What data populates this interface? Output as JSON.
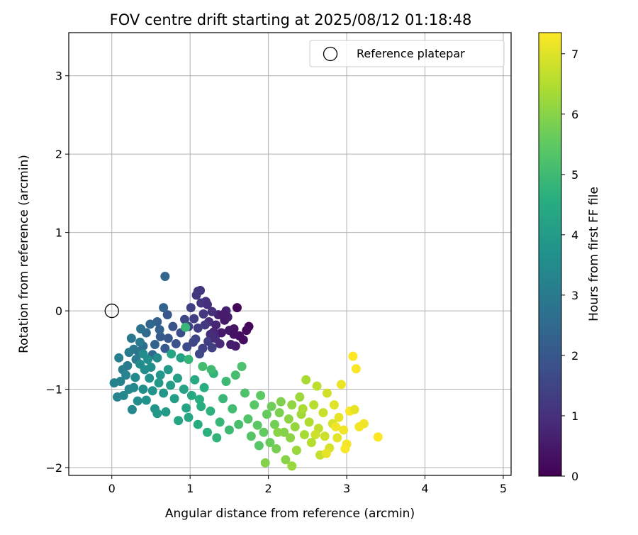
{
  "chart_data": {
    "type": "scatter",
    "title": "FOV centre drift starting at 2025/08/12 01:18:48",
    "xlabel": "Angular distance from reference (arcmin)",
    "ylabel": "Rotation from reference (arcmin)",
    "xlim": [
      -0.55,
      5.1
    ],
    "ylim": [
      -2.1,
      3.55
    ],
    "xticks": [
      "0",
      "1",
      "2",
      "3",
      "4",
      "5"
    ],
    "yticks": [
      "−2",
      "−1",
      "0",
      "1",
      "2",
      "3"
    ],
    "grid": true,
    "legend": {
      "position": "top-right",
      "entries": [
        {
          "label": "Reference platepar",
          "marker": "open-circle"
        }
      ]
    },
    "reference_point": {
      "x": 0.0,
      "y": 0.0
    },
    "colorbar": {
      "label": "Hours from first FF file",
      "colormap": "viridis",
      "range": [
        0,
        7.35
      ],
      "ticks": [
        "0",
        "1",
        "2",
        "3",
        "4",
        "5",
        "6",
        "7"
      ]
    },
    "series": [
      {
        "color_by": "hours",
        "points": [
          {
            "x": 1.6,
            "y": 0.04,
            "h": 0.1
          },
          {
            "x": 1.75,
            "y": -0.2,
            "h": 0.15
          },
          {
            "x": 1.72,
            "y": -0.25,
            "h": 0.2
          },
          {
            "x": 1.63,
            "y": -0.32,
            "h": 0.3
          },
          {
            "x": 1.68,
            "y": -0.37,
            "h": 0.25
          },
          {
            "x": 1.56,
            "y": -0.23,
            "h": 0.4
          },
          {
            "x": 1.5,
            "y": -0.25,
            "h": 0.45
          },
          {
            "x": 1.44,
            "y": -0.12,
            "h": 0.5
          },
          {
            "x": 1.4,
            "y": -0.28,
            "h": 0.55
          },
          {
            "x": 1.48,
            "y": -0.08,
            "h": 0.6
          },
          {
            "x": 1.46,
            "y": 0.0,
            "h": 0.65
          },
          {
            "x": 1.58,
            "y": -0.45,
            "h": 0.55
          },
          {
            "x": 1.52,
            "y": -0.43,
            "h": 0.6
          },
          {
            "x": 1.36,
            "y": -0.05,
            "h": 0.7
          },
          {
            "x": 1.33,
            "y": -0.18,
            "h": 0.75
          },
          {
            "x": 1.3,
            "y": -0.27,
            "h": 0.8
          },
          {
            "x": 1.38,
            "y": -0.42,
            "h": 0.85
          },
          {
            "x": 1.26,
            "y": -0.3,
            "h": 0.9
          },
          {
            "x": 1.24,
            "y": -0.14,
            "h": 0.95
          },
          {
            "x": 1.28,
            "y": -0.01,
            "h": 1.0
          },
          {
            "x": 1.2,
            "y": 0.12,
            "h": 1.05
          },
          {
            "x": 1.14,
            "y": 0.1,
            "h": 1.1
          },
          {
            "x": 1.1,
            "y": 0.25,
            "h": 1.1
          },
          {
            "x": 1.13,
            "y": 0.26,
            "h": 1.15
          },
          {
            "x": 1.08,
            "y": 0.2,
            "h": 1.2
          },
          {
            "x": 1.17,
            "y": -0.04,
            "h": 1.2
          },
          {
            "x": 1.19,
            "y": -0.18,
            "h": 1.25
          },
          {
            "x": 1.1,
            "y": -0.22,
            "h": 1.3
          },
          {
            "x": 1.05,
            "y": -0.1,
            "h": 1.35
          },
          {
            "x": 1.01,
            "y": 0.04,
            "h": 1.4
          },
          {
            "x": 1.23,
            "y": -0.39,
            "h": 1.35
          },
          {
            "x": 1.16,
            "y": -0.48,
            "h": 1.45
          },
          {
            "x": 1.07,
            "y": -0.36,
            "h": 1.5
          },
          {
            "x": 0.98,
            "y": -0.2,
            "h": 1.55
          },
          {
            "x": 0.93,
            "y": -0.11,
            "h": 1.6
          },
          {
            "x": 1.28,
            "y": -0.47,
            "h": 1.4
          },
          {
            "x": 1.12,
            "y": -0.55,
            "h": 1.6
          },
          {
            "x": 0.96,
            "y": -0.46,
            "h": 1.7
          },
          {
            "x": 0.88,
            "y": -0.28,
            "h": 1.75
          },
          {
            "x": 0.82,
            "y": -0.42,
            "h": 1.85
          },
          {
            "x": 0.78,
            "y": -0.2,
            "h": 1.9
          },
          {
            "x": 0.71,
            "y": -0.05,
            "h": 2.0
          },
          {
            "x": 0.72,
            "y": -0.35,
            "h": 2.0
          },
          {
            "x": 0.68,
            "y": -0.48,
            "h": 2.05
          },
          {
            "x": 0.62,
            "y": -0.33,
            "h": 2.1
          },
          {
            "x": 0.58,
            "y": -0.14,
            "h": 2.2
          },
          {
            "x": 0.66,
            "y": 0.04,
            "h": 2.3
          },
          {
            "x": 0.61,
            "y": -0.24,
            "h": 2.3
          },
          {
            "x": 0.55,
            "y": -0.43,
            "h": 2.35
          },
          {
            "x": 0.49,
            "y": -0.17,
            "h": 2.45
          },
          {
            "x": 0.52,
            "y": -0.56,
            "h": 2.5
          },
          {
            "x": 0.44,
            "y": -0.28,
            "h": 2.55
          },
          {
            "x": 0.4,
            "y": -0.45,
            "h": 2.6
          },
          {
            "x": 0.68,
            "y": 0.44,
            "h": 2.4
          },
          {
            "x": 0.37,
            "y": -0.23,
            "h": 2.7
          },
          {
            "x": 0.34,
            "y": -0.52,
            "h": 2.8
          },
          {
            "x": 0.28,
            "y": -0.49,
            "h": 2.85
          },
          {
            "x": 0.25,
            "y": -0.35,
            "h": 2.9
          },
          {
            "x": 0.31,
            "y": -0.62,
            "h": 2.95
          },
          {
            "x": 0.22,
            "y": -0.53,
            "h": 3.0
          },
          {
            "x": 0.2,
            "y": -0.7,
            "h": 3.05
          },
          {
            "x": 0.14,
            "y": -0.75,
            "h": 3.1
          },
          {
            "x": 0.09,
            "y": -0.6,
            "h": 3.15
          },
          {
            "x": 0.11,
            "y": -0.9,
            "h": 3.2
          },
          {
            "x": 0.03,
            "y": -0.92,
            "h": 3.25
          },
          {
            "x": 0.07,
            "y": -1.1,
            "h": 3.3
          },
          {
            "x": 0.15,
            "y": -1.08,
            "h": 3.35
          },
          {
            "x": 0.26,
            "y": -1.26,
            "h": 3.4
          },
          {
            "x": 0.22,
            "y": -1.0,
            "h": 3.4
          },
          {
            "x": 0.3,
            "y": -0.85,
            "h": 3.45
          },
          {
            "x": 0.36,
            "y": -0.68,
            "h": 3.5
          },
          {
            "x": 0.42,
            "y": -0.75,
            "h": 3.55
          },
          {
            "x": 0.33,
            "y": -1.15,
            "h": 3.55
          },
          {
            "x": 0.4,
            "y": -1.0,
            "h": 3.6
          },
          {
            "x": 0.46,
            "y": -0.62,
            "h": 3.65
          },
          {
            "x": 0.48,
            "y": -0.86,
            "h": 3.7
          },
          {
            "x": 0.52,
            "y": -1.02,
            "h": 3.75
          },
          {
            "x": 0.55,
            "y": -1.25,
            "h": 3.8
          },
          {
            "x": 0.58,
            "y": -1.31,
            "h": 3.85
          },
          {
            "x": 0.62,
            "y": -0.82,
            "h": 3.85
          },
          {
            "x": 0.66,
            "y": -1.05,
            "h": 3.9
          },
          {
            "x": 0.69,
            "y": -1.29,
            "h": 3.95
          },
          {
            "x": 0.72,
            "y": -0.75,
            "h": 4.0
          },
          {
            "x": 0.75,
            "y": -0.95,
            "h": 4.05
          },
          {
            "x": 0.8,
            "y": -1.12,
            "h": 4.1
          },
          {
            "x": 0.84,
            "y": -0.86,
            "h": 4.15
          },
          {
            "x": 0.88,
            "y": -0.6,
            "h": 4.2
          },
          {
            "x": 0.92,
            "y": -1.0,
            "h": 4.25
          },
          {
            "x": 0.95,
            "y": -1.24,
            "h": 4.3
          },
          {
            "x": 0.98,
            "y": -1.36,
            "h": 4.35
          },
          {
            "x": 1.02,
            "y": -1.08,
            "h": 4.4
          },
          {
            "x": 1.06,
            "y": -0.88,
            "h": 4.45
          },
          {
            "x": 1.1,
            "y": -1.45,
            "h": 4.5
          },
          {
            "x": 1.14,
            "y": -1.22,
            "h": 4.55
          },
          {
            "x": 1.18,
            "y": -0.98,
            "h": 4.6
          },
          {
            "x": 1.22,
            "y": -1.55,
            "h": 4.65
          },
          {
            "x": 1.26,
            "y": -1.28,
            "h": 4.7
          },
          {
            "x": 1.3,
            "y": -0.8,
            "h": 4.75
          },
          {
            "x": 1.34,
            "y": -1.62,
            "h": 4.8
          },
          {
            "x": 1.38,
            "y": -1.42,
            "h": 4.85
          },
          {
            "x": 1.42,
            "y": -1.12,
            "h": 4.9
          },
          {
            "x": 1.46,
            "y": -0.9,
            "h": 4.95
          },
          {
            "x": 1.5,
            "y": -1.52,
            "h": 5.0
          },
          {
            "x": 1.54,
            "y": -1.25,
            "h": 5.05
          },
          {
            "x": 1.58,
            "y": -0.82,
            "h": 5.1
          },
          {
            "x": 1.62,
            "y": -1.45,
            "h": 5.15
          },
          {
            "x": 1.66,
            "y": -0.71,
            "h": 5.2
          },
          {
            "x": 1.7,
            "y": -1.05,
            "h": 5.25
          },
          {
            "x": 1.74,
            "y": -1.38,
            "h": 5.3
          },
          {
            "x": 1.78,
            "y": -1.6,
            "h": 5.35
          },
          {
            "x": 1.82,
            "y": -1.2,
            "h": 5.4
          },
          {
            "x": 1.86,
            "y": -1.46,
            "h": 5.45
          },
          {
            "x": 1.9,
            "y": -1.08,
            "h": 5.5
          },
          {
            "x": 1.94,
            "y": -1.55,
            "h": 5.55
          },
          {
            "x": 1.98,
            "y": -1.32,
            "h": 5.6
          },
          {
            "x": 2.02,
            "y": -1.68,
            "h": 5.65
          },
          {
            "x": 2.04,
            "y": -1.22,
            "h": 5.7
          },
          {
            "x": 2.08,
            "y": -1.45,
            "h": 5.75
          },
          {
            "x": 2.1,
            "y": -1.76,
            "h": 5.8
          },
          {
            "x": 2.14,
            "y": -1.3,
            "h": 5.85
          },
          {
            "x": 2.16,
            "y": -1.16,
            "h": 5.9
          },
          {
            "x": 2.2,
            "y": -1.55,
            "h": 5.95
          },
          {
            "x": 2.22,
            "y": -1.9,
            "h": 6.0
          },
          {
            "x": 2.26,
            "y": -1.38,
            "h": 6.05
          },
          {
            "x": 2.28,
            "y": -1.62,
            "h": 6.05
          },
          {
            "x": 2.3,
            "y": -1.2,
            "h": 6.1
          },
          {
            "x": 2.34,
            "y": -1.48,
            "h": 6.15
          },
          {
            "x": 2.36,
            "y": -1.78,
            "h": 6.2
          },
          {
            "x": 2.4,
            "y": -1.1,
            "h": 6.25
          },
          {
            "x": 2.42,
            "y": -1.32,
            "h": 6.3
          },
          {
            "x": 2.46,
            "y": -1.58,
            "h": 6.35
          },
          {
            "x": 2.48,
            "y": -0.88,
            "h": 6.4
          },
          {
            "x": 2.52,
            "y": -1.42,
            "h": 6.45
          },
          {
            "x": 2.55,
            "y": -1.68,
            "h": 6.5
          },
          {
            "x": 2.58,
            "y": -1.2,
            "h": 6.55
          },
          {
            "x": 2.62,
            "y": -0.96,
            "h": 6.6
          },
          {
            "x": 2.64,
            "y": -1.5,
            "h": 6.65
          },
          {
            "x": 2.66,
            "y": -1.84,
            "h": 6.7
          },
          {
            "x": 2.7,
            "y": -1.3,
            "h": 6.75
          },
          {
            "x": 2.72,
            "y": -1.6,
            "h": 6.8
          },
          {
            "x": 2.75,
            "y": -1.05,
            "h": 6.85
          },
          {
            "x": 2.78,
            "y": -1.75,
            "h": 6.9
          },
          {
            "x": 2.82,
            "y": -1.44,
            "h": 6.95
          },
          {
            "x": 2.84,
            "y": -1.2,
            "h": 7.0
          },
          {
            "x": 2.88,
            "y": -1.62,
            "h": 7.05
          },
          {
            "x": 2.9,
            "y": -1.36,
            "h": 7.1
          },
          {
            "x": 2.93,
            "y": -0.94,
            "h": 7.15
          },
          {
            "x": 2.96,
            "y": -1.52,
            "h": 7.2
          },
          {
            "x": 3.0,
            "y": -1.7,
            "h": 7.25
          },
          {
            "x": 3.04,
            "y": -1.28,
            "h": 7.3
          },
          {
            "x": 3.08,
            "y": -0.58,
            "h": 7.35
          },
          {
            "x": 3.12,
            "y": -0.74,
            "h": 7.3
          },
          {
            "x": 3.16,
            "y": -1.48,
            "h": 7.25
          },
          {
            "x": 3.22,
            "y": -1.44,
            "h": 7.2
          },
          {
            "x": 3.4,
            "y": -1.61,
            "h": 7.35
          },
          {
            "x": 2.74,
            "y": -1.82,
            "h": 7.1
          },
          {
            "x": 2.6,
            "y": -1.58,
            "h": 6.8
          },
          {
            "x": 2.98,
            "y": -1.76,
            "h": 7.3
          },
          {
            "x": 2.86,
            "y": -1.48,
            "h": 7.2
          },
          {
            "x": 3.1,
            "y": -1.26,
            "h": 7.1
          },
          {
            "x": 1.96,
            "y": -1.94,
            "h": 5.95
          },
          {
            "x": 2.3,
            "y": -1.98,
            "h": 6.2
          },
          {
            "x": 2.12,
            "y": -1.55,
            "h": 6.0
          },
          {
            "x": 2.44,
            "y": -1.25,
            "h": 6.4
          },
          {
            "x": 1.88,
            "y": -1.72,
            "h": 5.4
          },
          {
            "x": 0.94,
            "y": -0.21,
            "h": 4.9
          },
          {
            "x": 1.27,
            "y": -0.75,
            "h": 5.0
          },
          {
            "x": 1.16,
            "y": -0.71,
            "h": 5.05
          },
          {
            "x": 0.98,
            "y": -0.62,
            "h": 4.8
          },
          {
            "x": 1.12,
            "y": -1.13,
            "h": 4.6
          },
          {
            "x": 0.85,
            "y": -1.4,
            "h": 4.35
          },
          {
            "x": 0.76,
            "y": -0.55,
            "h": 4.3
          },
          {
            "x": 0.6,
            "y": -0.92,
            "h": 3.9
          },
          {
            "x": 0.18,
            "y": -0.82,
            "h": 3.3
          },
          {
            "x": 0.4,
            "y": -0.55,
            "h": 3.5
          },
          {
            "x": 0.5,
            "y": -0.72,
            "h": 3.6
          },
          {
            "x": 0.28,
            "y": -0.98,
            "h": 3.45
          },
          {
            "x": 0.44,
            "y": -1.14,
            "h": 3.7
          },
          {
            "x": 0.58,
            "y": -0.6,
            "h": 3.5
          },
          {
            "x": 0.36,
            "y": -0.4,
            "h": 3.0
          },
          {
            "x": 1.04,
            "y": -0.4,
            "h": 1.55
          },
          {
            "x": 1.32,
            "y": -0.35,
            "h": 0.9
          },
          {
            "x": 1.42,
            "y": -0.05,
            "h": 0.55
          },
          {
            "x": 1.22,
            "y": 0.08,
            "h": 1.0
          },
          {
            "x": 1.56,
            "y": -0.3,
            "h": 0.35
          }
        ]
      }
    ]
  }
}
